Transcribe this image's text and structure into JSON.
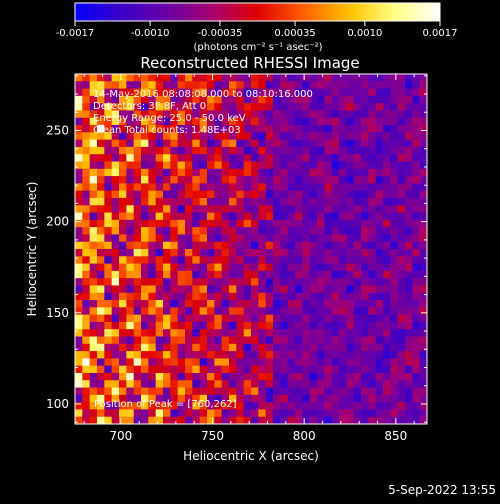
{
  "chart_data": {
    "type": "heatmap",
    "title": "Reconstructed RHESSI Image",
    "xlabel": "Heliocentric X (arcsec)",
    "ylabel": "Heliocentric Y (arcsec)",
    "xlim": [
      675,
      867
    ],
    "ylim": [
      89,
      281
    ],
    "x_ticks": [
      700,
      750,
      800,
      850
    ],
    "y_ticks": [
      100,
      150,
      200,
      250
    ],
    "colorbar": {
      "range": [
        -0.0017,
        0.0017
      ],
      "ticks": [
        "-0.0017",
        "-0.0010",
        "-0.00035",
        "0.00035",
        "0.0010",
        "0.0017"
      ],
      "units_label": "(photons cm⁻² s⁻¹ asec⁻²)",
      "colormap": [
        "#0000ff",
        "#3a00c8",
        "#6a00a8",
        "#a80070",
        "#e00000",
        "#ff6000",
        "#ffc000",
        "#ffff80",
        "#ffffff"
      ]
    },
    "grid_cells": [
      48,
      48
    ],
    "annotations": [
      "14-May-2016 08:08:08.000 to 08:10:16.000",
      "Detectors: 3F 8F, Att 0",
      "Energy Range: 25.0 - 50.0 keV",
      "Clean    Total counts: 1.48E+03"
    ],
    "peak_label": "Position of Peak = [760,262]",
    "peak_position": [
      760,
      262
    ]
  },
  "footer": {
    "date": "5-Sep-2022 13:55"
  }
}
